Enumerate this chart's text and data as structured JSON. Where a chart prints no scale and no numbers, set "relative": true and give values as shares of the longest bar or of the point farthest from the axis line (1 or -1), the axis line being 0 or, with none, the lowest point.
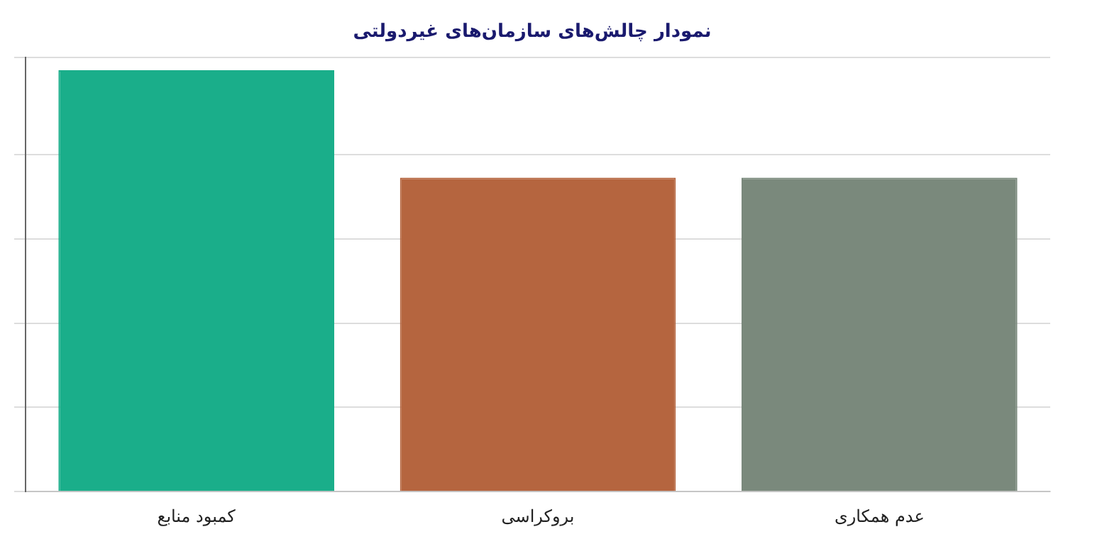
{
  "chart_data": {
    "type": "bar",
    "title": "نمودار چالش‌های سازمان‌های غیردولتی",
    "categories": [
      "کمبود منابع",
      "بروکراسی",
      "عدم همکاری"
    ],
    "values": [
      1,
      0.745,
      0.745
    ],
    "colors": [
      "#1aae8a",
      "#b5653f",
      "#7a897c"
    ],
    "relative": true,
    "grid": "y",
    "legend": false
  }
}
